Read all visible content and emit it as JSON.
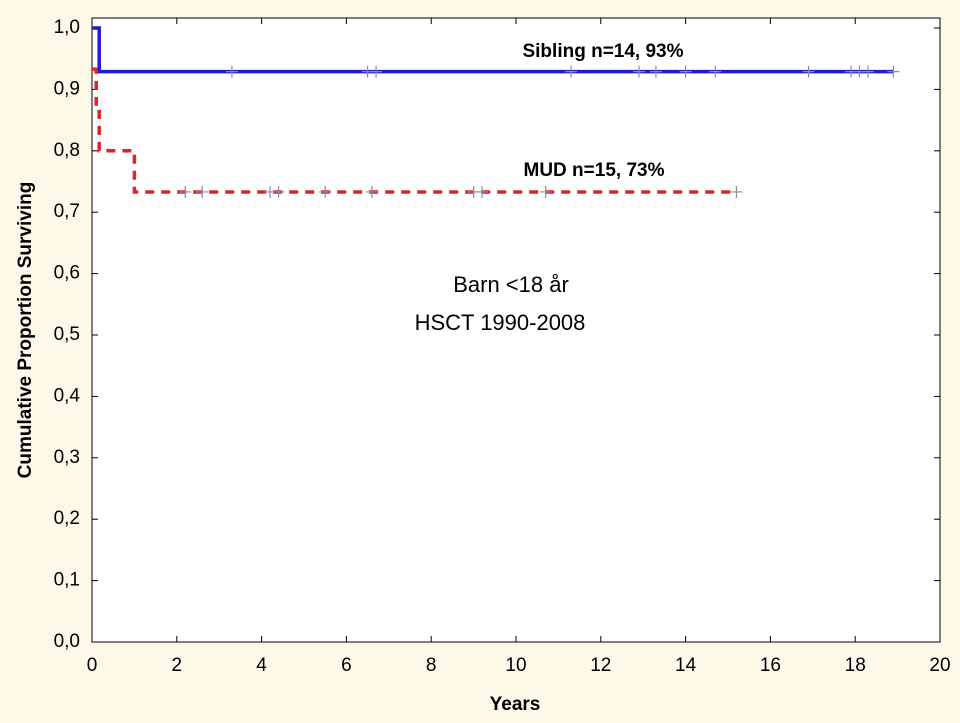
{
  "chart_data": {
    "type": "step",
    "xlabel": "Years",
    "ylabel": "Cumulative Proportion Surviving",
    "xlim": [
      0,
      20
    ],
    "xticks": [
      0,
      2,
      4,
      6,
      8,
      10,
      12,
      14,
      16,
      18,
      20
    ],
    "ylim": [
      0,
      1
    ],
    "yticks": [
      {
        "value": 0,
        "label": "0,0"
      },
      {
        "value": 0.1,
        "label": "0,1"
      },
      {
        "value": 0.2,
        "label": "0,2"
      },
      {
        "value": 0.3,
        "label": "0,3"
      },
      {
        "value": 0.4,
        "label": "0,4"
      },
      {
        "value": 0.5,
        "label": "0,5"
      },
      {
        "value": 0.6,
        "label": "0,6"
      },
      {
        "value": 0.7,
        "label": "0,7"
      },
      {
        "value": 0.8,
        "label": "0,8"
      },
      {
        "value": 0.9,
        "label": "0,9"
      },
      {
        "value": 1,
        "label": "1,0"
      }
    ],
    "annotations": [
      "Sibling n=14, 93%",
      "MUD n=15, 73%",
      "Barn <18 år",
      "HSCT 1990-2008"
    ],
    "series": [
      {
        "color": "#1c1cd0",
        "dashed": false,
        "x": [
          0,
          0.17,
          18.9
        ],
        "values": [
          1,
          0.929,
          0.929
        ],
        "censored": {
          "x": [
            3.3,
            6.5,
            6.7,
            11.3,
            12.9,
            13.3,
            14.0,
            14.7,
            16.9,
            17.9,
            18.1,
            18.3,
            18.9
          ],
          "values": [
            0.929,
            0.929,
            0.929,
            0.929,
            0.929,
            0.929,
            0.929,
            0.929,
            0.929,
            0.929,
            0.929,
            0.929,
            0.929
          ]
        }
      },
      {
        "color": "#e02424",
        "dashed": true,
        "x": [
          0,
          0.1,
          0.17,
          1.0,
          15.2
        ],
        "values": [
          0.933,
          0.867,
          0.8,
          0.733,
          0.733
        ],
        "censored": {
          "x": [
            2.2,
            2.6,
            4.2,
            4.4,
            5.5,
            6.6,
            9.0,
            9.2,
            10.7,
            15.2
          ],
          "values": [
            0.733,
            0.733,
            0.733,
            0.733,
            0.733,
            0.733,
            0.733,
            0.733,
            0.733,
            0.733
          ]
        }
      }
    ]
  }
}
